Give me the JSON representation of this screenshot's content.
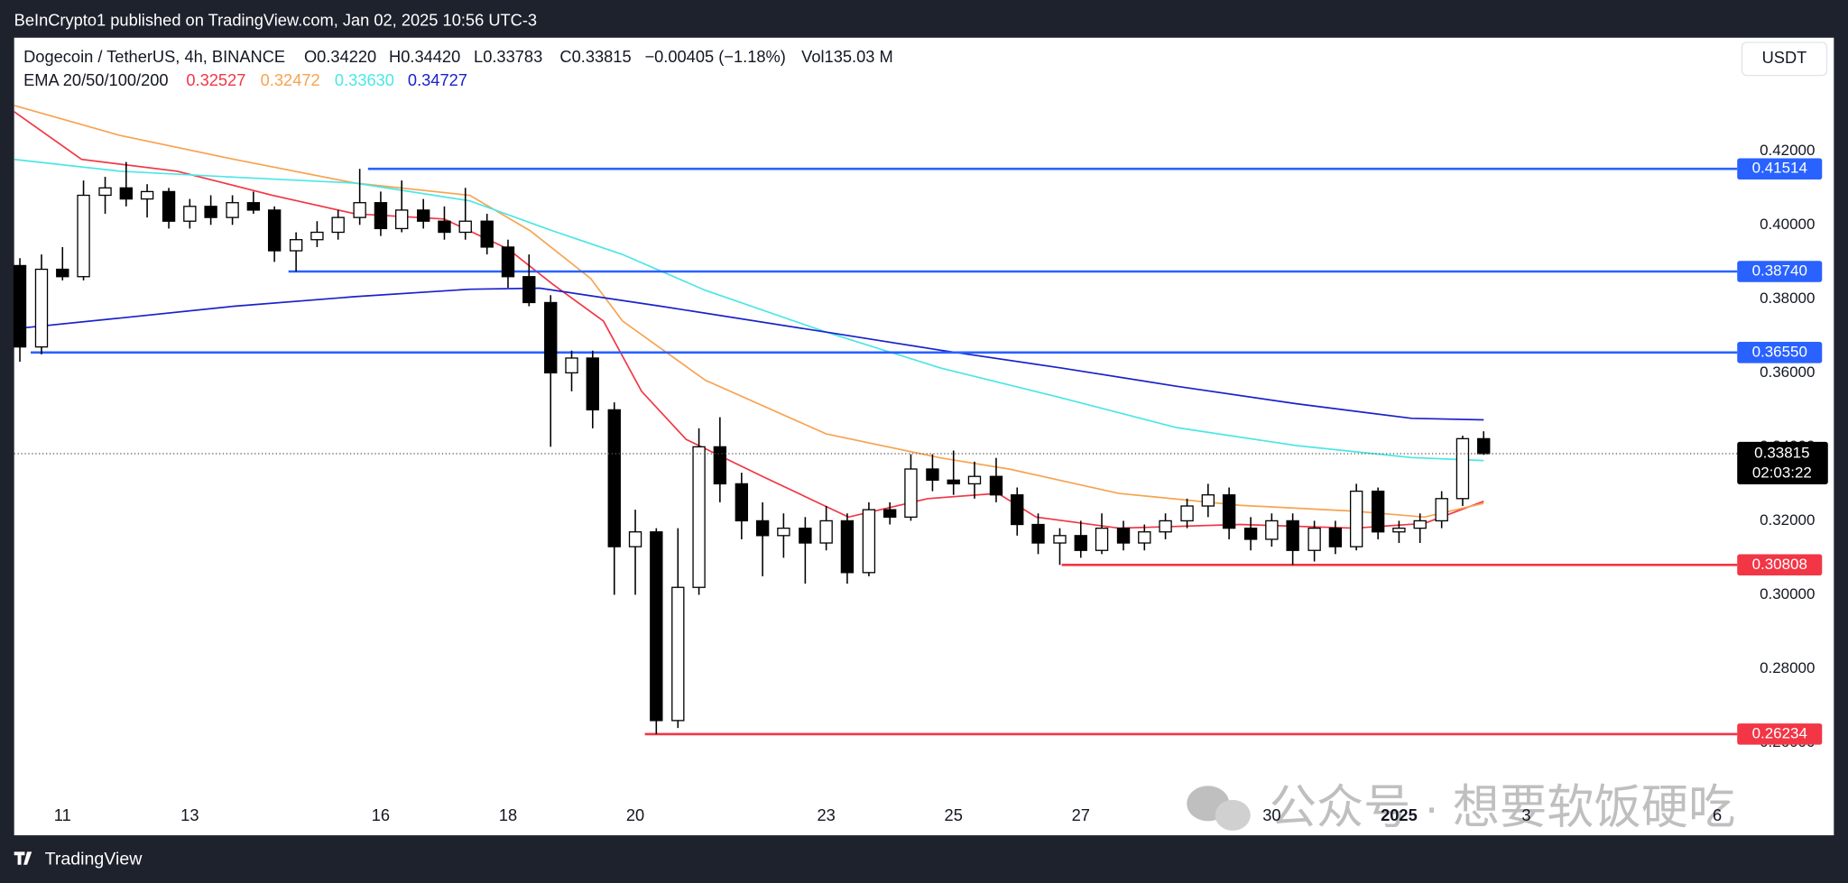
{
  "chart_data": {
    "type": "candlestick",
    "published": "BeInCrypto1 published on TradingView.com, Jan 02, 2025 10:56 UTC-3",
    "title": "Dogecoin / TetherUS, 4h, BINANCE",
    "ohlc": [
      "O0.34220",
      "H0.34420",
      "L0.33783",
      "C0.33815",
      "−0.00405 (−1.18%)",
      "Vol135.03 M"
    ],
    "currency": "USDT",
    "countdown": "02:03:22",
    "brand": "TradingView",
    "watermark": "公众号 · 想要软饭硬吃",
    "xlim": [
      10.24,
      37.24
    ],
    "ylim": [
      0.2353,
      0.4506
    ],
    "xticks": [
      11,
      13,
      16,
      18,
      20,
      23,
      25,
      27,
      30,
      {
        "value": 32,
        "label": "2025"
      },
      {
        "value": 34,
        "label": "3"
      },
      {
        "value": 37,
        "label": "6"
      }
    ],
    "yticks": [
      {
        "value": 0.42,
        "label": "0.42000"
      },
      {
        "value": 0.4,
        "label": "0.40000"
      },
      {
        "value": 0.38,
        "label": "0.38000"
      },
      {
        "value": 0.36,
        "label": "0.36000"
      },
      {
        "value": 0.34,
        "label": "0.34000"
      },
      {
        "value": 0.32,
        "label": "0.32000"
      },
      {
        "value": 0.3,
        "label": "0.30000"
      },
      {
        "value": 0.28,
        "label": "0.28000"
      },
      {
        "value": 0.26,
        "label": "0.26000"
      }
    ],
    "grid": false,
    "up_color": "#ffffff",
    "down_color": "#000000",
    "x": [
      10.33,
      10.67,
      11,
      11.33,
      11.67,
      12,
      12.33,
      12.67,
      13,
      13.33,
      13.67,
      14,
      14.33,
      14.67,
      15,
      15.33,
      15.67,
      16,
      16.33,
      16.67,
      17,
      17.33,
      17.67,
      18,
      18.33,
      18.67,
      19,
      19.33,
      19.67,
      20,
      20.33,
      20.67,
      21,
      21.33,
      21.67,
      22,
      22.33,
      22.67,
      23,
      23.33,
      23.67,
      24,
      24.33,
      24.67,
      25,
      25.33,
      25.67,
      26,
      26.33,
      26.67,
      27,
      27.33,
      27.67,
      28,
      28.33,
      28.67,
      29,
      29.33,
      29.67,
      30,
      30.33,
      30.67,
      31,
      31.33,
      31.67,
      32,
      32.33,
      32.67,
      33,
      33.33
    ],
    "candles": [
      [
        0.389,
        0.391,
        0.363,
        0.367
      ],
      [
        0.367,
        0.392,
        0.365,
        0.388
      ],
      [
        0.388,
        0.394,
        0.385,
        0.386
      ],
      [
        0.386,
        0.412,
        0.385,
        0.408
      ],
      [
        0.408,
        0.413,
        0.403,
        0.41
      ],
      [
        0.41,
        0.417,
        0.405,
        0.407
      ],
      [
        0.407,
        0.411,
        0.402,
        0.409
      ],
      [
        0.409,
        0.41,
        0.399,
        0.401
      ],
      [
        0.401,
        0.407,
        0.399,
        0.405
      ],
      [
        0.405,
        0.408,
        0.4,
        0.402
      ],
      [
        0.402,
        0.408,
        0.4,
        0.406
      ],
      [
        0.406,
        0.409,
        0.403,
        0.404
      ],
      [
        0.404,
        0.405,
        0.39,
        0.393
      ],
      [
        0.393,
        0.398,
        0.3874,
        0.396
      ],
      [
        0.396,
        0.401,
        0.394,
        0.398
      ],
      [
        0.398,
        0.404,
        0.396,
        0.402
      ],
      [
        0.402,
        0.41514,
        0.4,
        0.406
      ],
      [
        0.406,
        0.409,
        0.397,
        0.399
      ],
      [
        0.399,
        0.412,
        0.398,
        0.404
      ],
      [
        0.404,
        0.407,
        0.399,
        0.401
      ],
      [
        0.401,
        0.405,
        0.396,
        0.398
      ],
      [
        0.398,
        0.41,
        0.396,
        0.401
      ],
      [
        0.401,
        0.403,
        0.392,
        0.394
      ],
      [
        0.394,
        0.396,
        0.383,
        0.386
      ],
      [
        0.386,
        0.392,
        0.378,
        0.379
      ],
      [
        0.379,
        0.381,
        0.34,
        0.36
      ],
      [
        0.36,
        0.366,
        0.355,
        0.364
      ],
      [
        0.364,
        0.366,
        0.345,
        0.35
      ],
      [
        0.35,
        0.352,
        0.3,
        0.313
      ],
      [
        0.313,
        0.323,
        0.3,
        0.317
      ],
      [
        0.317,
        0.318,
        0.26234,
        0.266
      ],
      [
        0.266,
        0.318,
        0.264,
        0.302
      ],
      [
        0.302,
        0.345,
        0.3,
        0.34
      ],
      [
        0.34,
        0.348,
        0.325,
        0.33
      ],
      [
        0.33,
        0.333,
        0.315,
        0.32
      ],
      [
        0.32,
        0.325,
        0.305,
        0.316
      ],
      [
        0.316,
        0.322,
        0.31,
        0.318
      ],
      [
        0.318,
        0.321,
        0.303,
        0.314
      ],
      [
        0.314,
        0.324,
        0.312,
        0.32
      ],
      [
        0.32,
        0.322,
        0.303,
        0.306
      ],
      [
        0.306,
        0.325,
        0.305,
        0.323
      ],
      [
        0.323,
        0.325,
        0.319,
        0.321
      ],
      [
        0.321,
        0.338,
        0.32,
        0.334
      ],
      [
        0.334,
        0.338,
        0.328,
        0.331
      ],
      [
        0.331,
        0.339,
        0.327,
        0.33
      ],
      [
        0.33,
        0.336,
        0.326,
        0.332
      ],
      [
        0.332,
        0.337,
        0.325,
        0.327
      ],
      [
        0.327,
        0.329,
        0.316,
        0.319
      ],
      [
        0.319,
        0.322,
        0.311,
        0.314
      ],
      [
        0.314,
        0.318,
        0.30808,
        0.316
      ],
      [
        0.316,
        0.32,
        0.31,
        0.312
      ],
      [
        0.312,
        0.322,
        0.311,
        0.318
      ],
      [
        0.318,
        0.32,
        0.312,
        0.314
      ],
      [
        0.314,
        0.319,
        0.312,
        0.317
      ],
      [
        0.317,
        0.322,
        0.315,
        0.32
      ],
      [
        0.32,
        0.326,
        0.318,
        0.324
      ],
      [
        0.324,
        0.33,
        0.321,
        0.327
      ],
      [
        0.327,
        0.329,
        0.315,
        0.318
      ],
      [
        0.318,
        0.321,
        0.312,
        0.315
      ],
      [
        0.315,
        0.322,
        0.313,
        0.32
      ],
      [
        0.32,
        0.322,
        0.30808,
        0.312
      ],
      [
        0.312,
        0.32,
        0.309,
        0.318
      ],
      [
        0.318,
        0.32,
        0.311,
        0.313
      ],
      [
        0.313,
        0.33,
        0.312,
        0.328
      ],
      [
        0.328,
        0.329,
        0.315,
        0.317
      ],
      [
        0.317,
        0.32,
        0.314,
        0.318
      ],
      [
        0.318,
        0.322,
        0.314,
        0.32
      ],
      [
        0.32,
        0.328,
        0.318,
        0.326
      ],
      [
        0.326,
        0.343,
        0.324,
        0.3422
      ],
      [
        0.3422,
        0.3442,
        0.33783,
        0.33815
      ]
    ],
    "indicators": {
      "label": "EMA 20/50/100/200",
      "lines": [
        {
          "color": "#f23645",
          "x": [
            10.24,
            11.3,
            12.8,
            14.3,
            15.6,
            17,
            18,
            18.7,
            19.5,
            20.1,
            20.8,
            22,
            23.35,
            24.6,
            25.7,
            26.3,
            27.6,
            29.5,
            31.3,
            32.4,
            33.33
          ],
          "values": [
            0.4306,
            0.4177,
            0.4145,
            0.408,
            0.403,
            0.4016,
            0.3935,
            0.384,
            0.374,
            0.355,
            0.342,
            0.332,
            0.321,
            0.326,
            0.3274,
            0.321,
            0.318,
            0.319,
            0.318,
            0.3193,
            0.32527
          ]
        },
        {
          "color": "#f7a350",
          "x": [
            10.24,
            11.9,
            13.7,
            15.6,
            17.4,
            18.35,
            19.3,
            19.8,
            21.1,
            23,
            24.8,
            25.9,
            27.6,
            29.5,
            31.3,
            32.4,
            33.33
          ],
          "values": [
            0.4323,
            0.4242,
            0.4177,
            0.4113,
            0.408,
            0.3984,
            0.3855,
            0.374,
            0.358,
            0.3435,
            0.337,
            0.3339,
            0.3274,
            0.3242,
            0.3226,
            0.321,
            0.32472
          ]
        },
        {
          "color": "#4ce6e6",
          "x": [
            10.24,
            11.9,
            13.7,
            15.6,
            17.4,
            18.7,
            19.8,
            21.1,
            23,
            24.8,
            26.7,
            28.5,
            30.4,
            32.2,
            33.33
          ],
          "values": [
            0.4177,
            0.4145,
            0.4129,
            0.4113,
            0.4065,
            0.3984,
            0.392,
            0.3823,
            0.371,
            0.3613,
            0.3532,
            0.3452,
            0.3403,
            0.3371,
            0.3363
          ]
        },
        {
          "color": "#1a22c9",
          "x": [
            10.24,
            11.9,
            13.7,
            15.6,
            17.4,
            18.5,
            20.4,
            23,
            24.8,
            26.7,
            28.5,
            30.4,
            32.2,
            33.33
          ],
          "values": [
            0.3719,
            0.3748,
            0.378,
            0.3806,
            0.3826,
            0.3829,
            0.378,
            0.371,
            0.3661,
            0.3613,
            0.3564,
            0.3516,
            0.3477,
            0.34727
          ]
        }
      ],
      "value_labels": [
        "0.32527",
        "0.32472",
        "0.33630",
        "0.34727"
      ]
    },
    "levels": [
      {
        "value": 0.41514,
        "from": 15.8,
        "color": "#2962ff"
      },
      {
        "value": 0.3874,
        "label": "0.38740",
        "from": 14.55,
        "color": "#2962ff"
      },
      {
        "value": 0.3655,
        "label": "0.36550",
        "from": 10.5,
        "color": "#2962ff"
      },
      {
        "value": 0.30808,
        "from": 26.7,
        "color": "#f23645"
      },
      {
        "value": 0.26234,
        "from": 20.15,
        "color": "#f23645"
      }
    ]
  }
}
